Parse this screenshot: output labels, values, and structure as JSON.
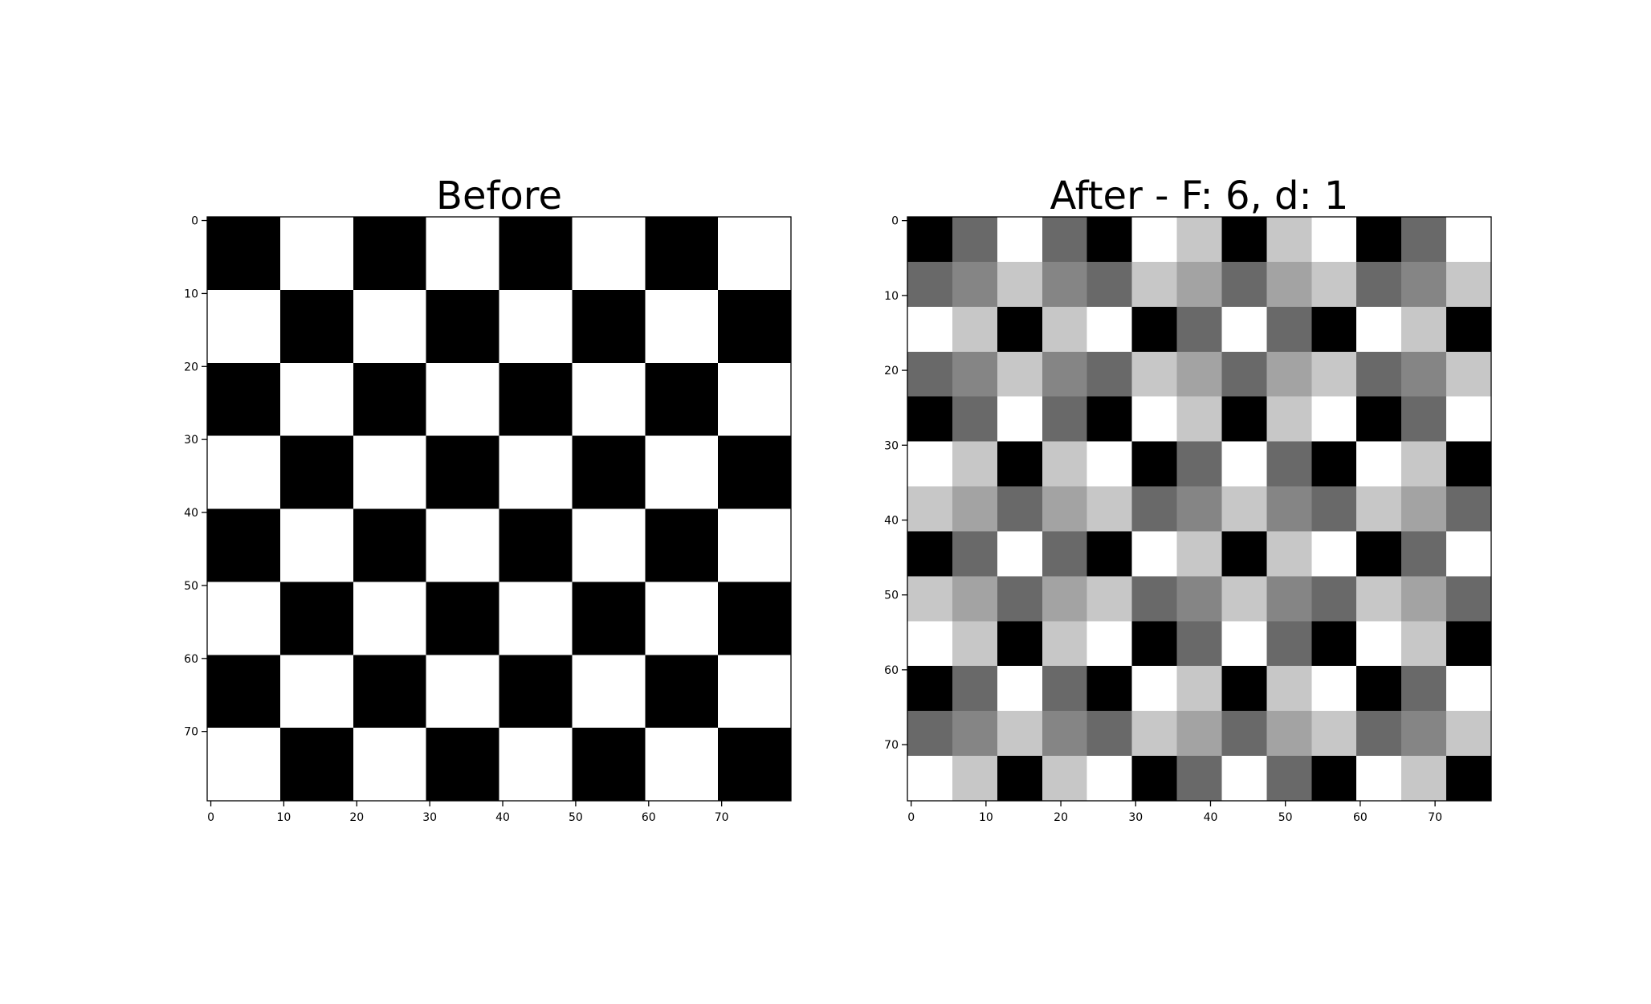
{
  "chart_data": [
    {
      "type": "heatmap",
      "title": "Before",
      "colormap": "gray",
      "grid": false,
      "shape": [
        80,
        80
      ],
      "block_size": 10,
      "xlim": [
        -0.5,
        79.5
      ],
      "ylim": [
        79.5,
        -0.5
      ],
      "xticks": [
        0,
        10,
        20,
        30,
        40,
        50,
        60,
        70
      ],
      "yticks": [
        0,
        10,
        20,
        30,
        40,
        50,
        60,
        70
      ],
      "xtick_labels": [
        "0",
        "10",
        "20",
        "30",
        "40",
        "50",
        "60",
        "70"
      ],
      "ytick_labels": [
        "0",
        "10",
        "20",
        "30",
        "40",
        "50",
        "60",
        "70"
      ],
      "block_values": [
        [
          0,
          1,
          0,
          1,
          0,
          1,
          0,
          1
        ],
        [
          1,
          0,
          1,
          0,
          1,
          0,
          1,
          0
        ],
        [
          0,
          1,
          0,
          1,
          0,
          1,
          0,
          1
        ],
        [
          1,
          0,
          1,
          0,
          1,
          0,
          1,
          0
        ],
        [
          0,
          1,
          0,
          1,
          0,
          1,
          0,
          1
        ],
        [
          1,
          0,
          1,
          0,
          1,
          0,
          1,
          0
        ],
        [
          0,
          1,
          0,
          1,
          0,
          1,
          0,
          1
        ],
        [
          1,
          0,
          1,
          0,
          1,
          0,
          1,
          0
        ]
      ]
    },
    {
      "type": "heatmap",
      "title": "After - F: 6, d: 1",
      "colormap": "gray",
      "grid": false,
      "shape": [
        78,
        78
      ],
      "block_size": 6,
      "xlim": [
        -0.5,
        77.5
      ],
      "ylim": [
        77.5,
        -0.5
      ],
      "xticks": [
        0,
        10,
        20,
        30,
        40,
        50,
        60,
        70
      ],
      "yticks": [
        0,
        10,
        20,
        30,
        40,
        50,
        60,
        70
      ],
      "xtick_labels": [
        "0",
        "10",
        "20",
        "30",
        "40",
        "50",
        "60",
        "70"
      ],
      "ytick_labels": [
        "0",
        "10",
        "20",
        "30",
        "40",
        "50",
        "60",
        "70"
      ],
      "block_values": [
        [
          0.0,
          0.41,
          1.0,
          0.41,
          0.0,
          1.0,
          0.78,
          0.0,
          0.78,
          1.0,
          0.0,
          0.41,
          1.0
        ],
        [
          0.41,
          0.52,
          0.78,
          0.52,
          0.41,
          0.78,
          0.64,
          0.41,
          0.64,
          0.78,
          0.41,
          0.52,
          0.78
        ],
        [
          1.0,
          0.78,
          0.0,
          0.78,
          1.0,
          0.0,
          0.41,
          1.0,
          0.41,
          0.0,
          1.0,
          0.78,
          0.0
        ],
        [
          0.41,
          0.52,
          0.78,
          0.52,
          0.41,
          0.78,
          0.64,
          0.41,
          0.64,
          0.78,
          0.41,
          0.52,
          0.78
        ],
        [
          0.0,
          0.41,
          1.0,
          0.41,
          0.0,
          1.0,
          0.78,
          0.0,
          0.78,
          1.0,
          0.0,
          0.41,
          1.0
        ],
        [
          1.0,
          0.78,
          0.0,
          0.78,
          1.0,
          0.0,
          0.41,
          1.0,
          0.41,
          0.0,
          1.0,
          0.78,
          0.0
        ],
        [
          0.78,
          0.64,
          0.41,
          0.64,
          0.78,
          0.41,
          0.52,
          0.78,
          0.52,
          0.41,
          0.78,
          0.64,
          0.41
        ],
        [
          0.0,
          0.41,
          1.0,
          0.41,
          0.0,
          1.0,
          0.78,
          0.0,
          0.78,
          1.0,
          0.0,
          0.41,
          1.0
        ],
        [
          0.78,
          0.64,
          0.41,
          0.64,
          0.78,
          0.41,
          0.52,
          0.78,
          0.52,
          0.41,
          0.78,
          0.64,
          0.41
        ],
        [
          1.0,
          0.78,
          0.0,
          0.78,
          1.0,
          0.0,
          0.41,
          1.0,
          0.41,
          0.0,
          1.0,
          0.78,
          0.0
        ],
        [
          0.0,
          0.41,
          1.0,
          0.41,
          0.0,
          1.0,
          0.78,
          0.0,
          0.78,
          1.0,
          0.0,
          0.41,
          1.0
        ],
        [
          0.41,
          0.52,
          0.78,
          0.52,
          0.41,
          0.78,
          0.64,
          0.41,
          0.64,
          0.78,
          0.41,
          0.52,
          0.78
        ],
        [
          1.0,
          0.78,
          0.0,
          0.78,
          1.0,
          0.0,
          0.41,
          1.0,
          0.41,
          0.0,
          1.0,
          0.78,
          0.0
        ]
      ]
    }
  ]
}
